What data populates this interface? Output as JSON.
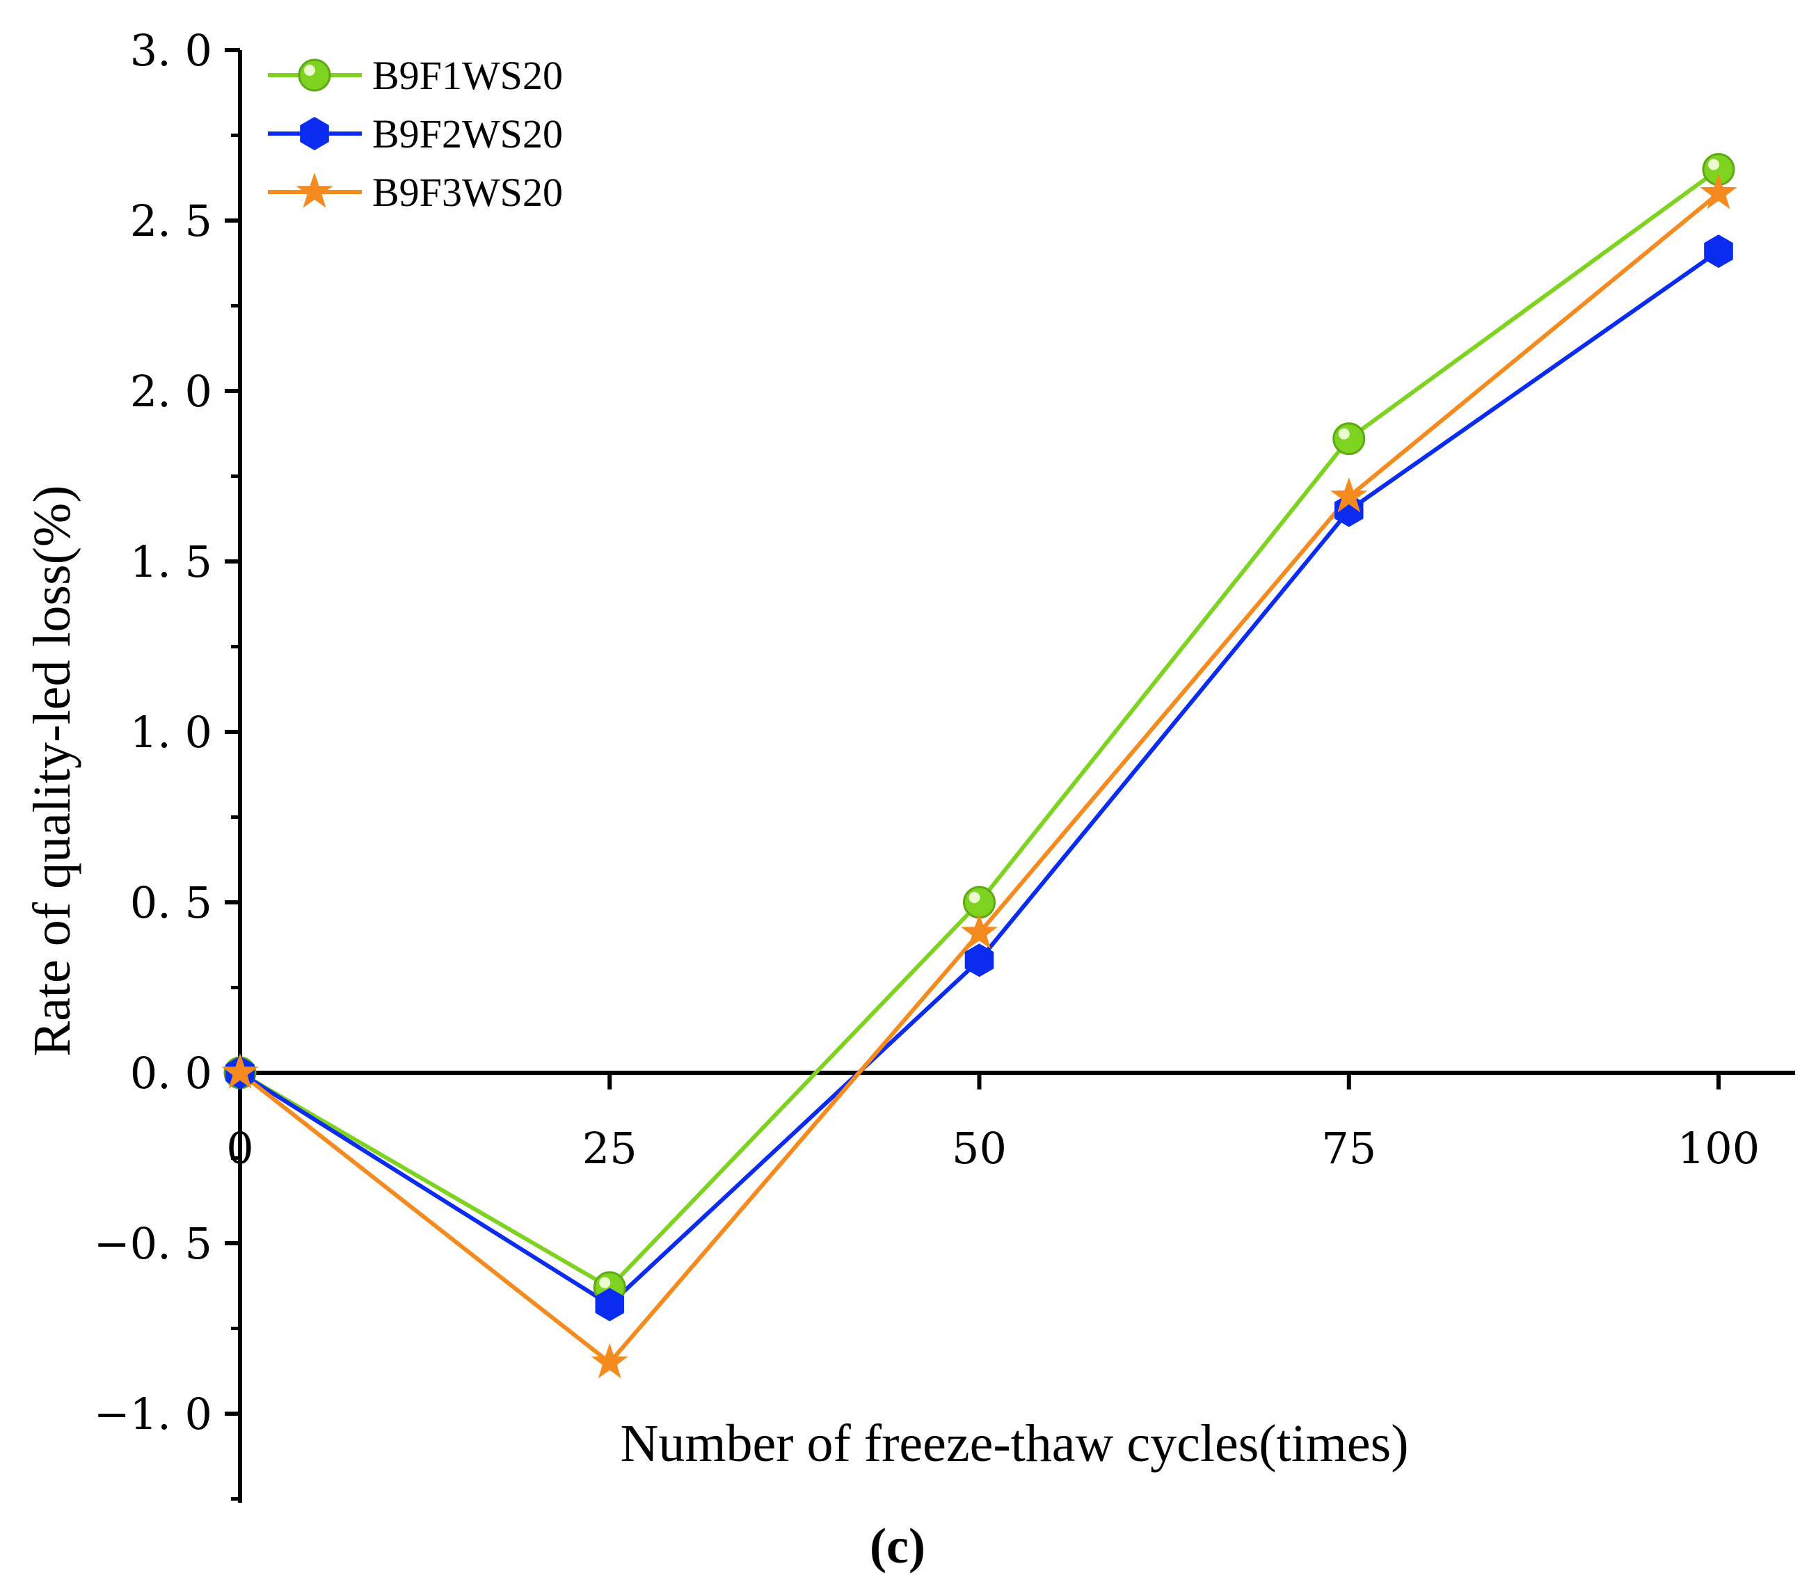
{
  "chart_data": {
    "type": "line",
    "xlabel": "Number of freeze-thaw cycles(times)",
    "ylabel": "Rate of quality-led loss(%)",
    "caption": "(c)",
    "x": [
      0,
      25,
      50,
      75,
      100
    ],
    "x_tick_labels": [
      "0",
      "25",
      "50",
      "75",
      "100"
    ],
    "y_tick_labels": [
      "3. 0",
      "2. 5",
      "2. 0",
      "1. 5",
      "1. 0",
      "0. 5",
      "0. 0",
      "−0. 5",
      "−1. 0"
    ],
    "y_ticks": [
      3.0,
      2.5,
      2.0,
      1.5,
      1.0,
      0.5,
      0.0,
      -0.5,
      -1.0
    ],
    "xlim": [
      0,
      105
    ],
    "ylim": [
      -1.25,
      3.0
    ],
    "grid": false,
    "legend_position": "top-left",
    "series": [
      {
        "name": "B9F1WS20",
        "values": [
          0.0,
          -0.63,
          0.5,
          1.86,
          2.65
        ],
        "color": "#7ed321",
        "marker": "circle"
      },
      {
        "name": "B9F2WS20",
        "values": [
          0.0,
          -0.68,
          0.33,
          1.65,
          2.41
        ],
        "color": "#0a2cf0",
        "marker": "hexagon"
      },
      {
        "name": "B9F3WS20",
        "values": [
          0.0,
          -0.85,
          0.41,
          1.69,
          2.58
        ],
        "color": "#f58a1f",
        "marker": "star"
      }
    ]
  }
}
